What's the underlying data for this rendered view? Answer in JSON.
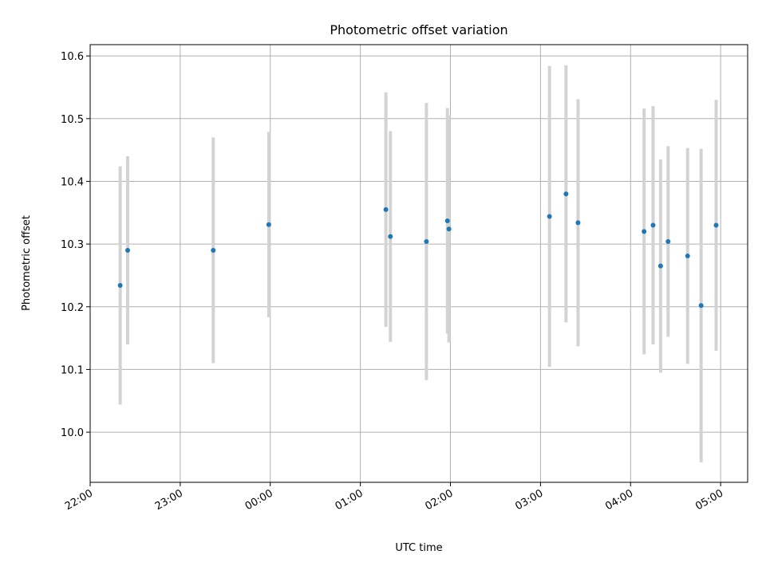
{
  "chart_data": {
    "type": "scatter",
    "title": "Photometric offset variation",
    "xlabel": "UTC time",
    "ylabel": "Photometric offset",
    "xlim": [
      "22:00",
      "05:18"
    ],
    "ylim": [
      9.92,
      10.618
    ],
    "x_ticks": [
      "22:00",
      "23:00",
      "00:00",
      "01:00",
      "02:00",
      "03:00",
      "04:00",
      "05:00"
    ],
    "y_ticks": [
      "10.0",
      "10.1",
      "10.2",
      "10.3",
      "10.4",
      "10.5",
      "10.6"
    ],
    "grid": true,
    "colors": {
      "point": "#1f77b4",
      "errorbar": "#d3d3d3",
      "grid": "#b0b0b0"
    },
    "points": [
      {
        "x": "22:20",
        "y": 10.234,
        "yerr": 0.19
      },
      {
        "x": "22:25",
        "y": 10.29,
        "yerr": 0.15
      },
      {
        "x": "23:22",
        "y": 10.29,
        "yerr": 0.18
      },
      {
        "x": "23:59",
        "y": 10.331,
        "yerr": 0.148
      },
      {
        "x": "01:17",
        "y": 10.355,
        "yerr": 0.187
      },
      {
        "x": "01:20",
        "y": 10.312,
        "yerr": 0.168
      },
      {
        "x": "01:44",
        "y": 10.304,
        "yerr": 0.221
      },
      {
        "x": "01:58",
        "y": 10.337,
        "yerr": 0.18
      },
      {
        "x": "01:59",
        "y": 10.324,
        "yerr": 0.181
      },
      {
        "x": "03:06",
        "y": 10.344,
        "yerr": 0.24
      },
      {
        "x": "03:17",
        "y": 10.38,
        "yerr": 0.205
      },
      {
        "x": "03:25",
        "y": 10.334,
        "yerr": 0.197
      },
      {
        "x": "04:09",
        "y": 10.32,
        "yerr": 0.196
      },
      {
        "x": "04:15",
        "y": 10.33,
        "yerr": 0.19
      },
      {
        "x": "04:20",
        "y": 10.265,
        "yerr": 0.17
      },
      {
        "x": "04:25",
        "y": 10.304,
        "yerr": 0.152
      },
      {
        "x": "04:38",
        "y": 10.281,
        "yerr": 0.172
      },
      {
        "x": "04:47",
        "y": 10.202,
        "yerr": 0.25
      },
      {
        "x": "04:57",
        "y": 10.33,
        "yerr": 0.2
      }
    ]
  }
}
